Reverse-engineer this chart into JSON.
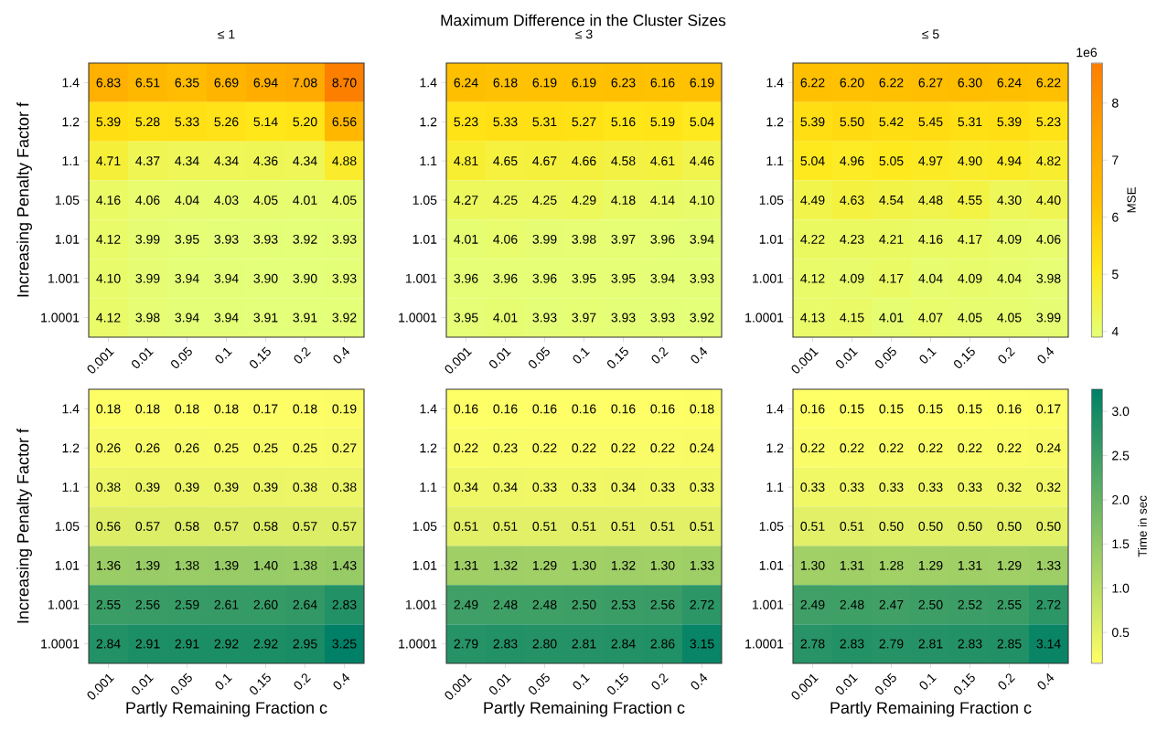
{
  "chart_data": [
    {
      "type": "heatmap",
      "title": "≤ 1",
      "ylabel": "Increasing Penalty Factor f",
      "annotations": [
        "Maximum Difference in the Cluster Sizes"
      ],
      "categories": [
        "0.001",
        "0.01",
        "0.05",
        "0.1",
        "0.15",
        "0.2",
        "0.4"
      ],
      "y_categories": [
        "1.4",
        "1.2",
        "1.1",
        "1.05",
        "1.01",
        "1.001",
        "1.0001"
      ],
      "cells": [
        [
          6.83,
          6.51,
          6.35,
          6.69,
          6.94,
          7.08,
          8.7
        ],
        [
          5.39,
          5.28,
          5.33,
          5.26,
          5.14,
          5.2,
          6.56
        ],
        [
          4.71,
          4.37,
          4.34,
          4.34,
          4.36,
          4.34,
          4.88
        ],
        [
          4.16,
          4.06,
          4.04,
          4.03,
          4.05,
          4.01,
          4.05
        ],
        [
          4.12,
          3.99,
          3.95,
          3.93,
          3.93,
          3.92,
          3.93
        ],
        [
          4.1,
          3.99,
          3.94,
          3.94,
          3.9,
          3.9,
          3.93
        ],
        [
          4.12,
          3.98,
          3.94,
          3.94,
          3.91,
          3.91,
          3.92
        ]
      ],
      "cell_labels": [
        [
          "6.83",
          "6.51",
          "6.35",
          "6.69",
          "6.94",
          "7.08",
          "8.70"
        ],
        [
          "5.39",
          "5.28",
          "5.33",
          "5.26",
          "5.14",
          "5.20",
          "6.56"
        ],
        [
          "4.71",
          "4.37",
          "4.34",
          "4.34",
          "4.36",
          "4.34",
          "4.88"
        ],
        [
          "4.16",
          "4.06",
          "4.04",
          "4.03",
          "4.05",
          "4.01",
          "4.05"
        ],
        [
          "4.12",
          "3.99",
          "3.95",
          "3.93",
          "3.93",
          "3.92",
          "3.93"
        ],
        [
          "4.10",
          "3.99",
          "3.94",
          "3.94",
          "3.90",
          "3.90",
          "3.93"
        ],
        [
          "4.12",
          "3.98",
          "3.94",
          "3.94",
          "3.91",
          "3.91",
          "3.92"
        ]
      ],
      "colors": [
        "#e4ff7a",
        "#ffe81a",
        "#ffbd00",
        "#ffa000",
        "#fc7f00"
      ]
    },
    {
      "type": "heatmap",
      "title": "≤ 3",
      "categories": [
        "0.001",
        "0.01",
        "0.05",
        "0.1",
        "0.15",
        "0.2",
        "0.4"
      ],
      "y_categories": [
        "1.4",
        "1.2",
        "1.1",
        "1.05",
        "1.01",
        "1.001",
        "1.0001"
      ],
      "cells": [
        [
          6.24,
          6.18,
          6.19,
          6.19,
          6.23,
          6.16,
          6.19
        ],
        [
          5.23,
          5.33,
          5.31,
          5.27,
          5.16,
          5.19,
          5.04
        ],
        [
          4.81,
          4.65,
          4.67,
          4.66,
          4.58,
          4.61,
          4.46
        ],
        [
          4.27,
          4.25,
          4.25,
          4.29,
          4.18,
          4.14,
          4.1
        ],
        [
          4.01,
          4.06,
          3.99,
          3.98,
          3.97,
          3.96,
          3.94
        ],
        [
          3.96,
          3.96,
          3.96,
          3.95,
          3.95,
          3.94,
          3.93
        ],
        [
          3.95,
          4.01,
          3.93,
          3.97,
          3.93,
          3.93,
          3.92
        ]
      ],
      "cell_labels": [
        [
          "6.24",
          "6.18",
          "6.19",
          "6.19",
          "6.23",
          "6.16",
          "6.19"
        ],
        [
          "5.23",
          "5.33",
          "5.31",
          "5.27",
          "5.16",
          "5.19",
          "5.04"
        ],
        [
          "4.81",
          "4.65",
          "4.67",
          "4.66",
          "4.58",
          "4.61",
          "4.46"
        ],
        [
          "4.27",
          "4.25",
          "4.25",
          "4.29",
          "4.18",
          "4.14",
          "4.10"
        ],
        [
          "4.01",
          "4.06",
          "3.99",
          "3.98",
          "3.97",
          "3.96",
          "3.94"
        ],
        [
          "3.96",
          "3.96",
          "3.96",
          "3.95",
          "3.95",
          "3.94",
          "3.93"
        ],
        [
          "3.95",
          "4.01",
          "3.93",
          "3.97",
          "3.93",
          "3.93",
          "3.92"
        ]
      ],
      "colors": [
        "#e4ff7a",
        "#ffe81a",
        "#ffbd00",
        "#ffa000",
        "#fc7f00"
      ]
    },
    {
      "type": "heatmap",
      "title": "≤ 5",
      "clabel": "MSE",
      "annotations": [
        "1e6"
      ],
      "categories": [
        "0.001",
        "0.01",
        "0.05",
        "0.1",
        "0.15",
        "0.2",
        "0.4"
      ],
      "y_categories": [
        "1.4",
        "1.2",
        "1.1",
        "1.05",
        "1.01",
        "1.001",
        "1.0001"
      ],
      "cells": [
        [
          6.22,
          6.2,
          6.22,
          6.27,
          6.3,
          6.24,
          6.22
        ],
        [
          5.39,
          5.5,
          5.42,
          5.45,
          5.31,
          5.39,
          5.23
        ],
        [
          5.04,
          4.96,
          5.05,
          4.97,
          4.9,
          4.94,
          4.82
        ],
        [
          4.49,
          4.63,
          4.54,
          4.48,
          4.55,
          4.3,
          4.4
        ],
        [
          4.22,
          4.23,
          4.21,
          4.16,
          4.17,
          4.09,
          4.06
        ],
        [
          4.12,
          4.09,
          4.17,
          4.04,
          4.09,
          4.04,
          3.98
        ],
        [
          4.13,
          4.15,
          4.01,
          4.07,
          4.05,
          4.05,
          3.99
        ]
      ],
      "cell_labels": [
        [
          "6.22",
          "6.20",
          "6.22",
          "6.27",
          "6.30",
          "6.24",
          "6.22"
        ],
        [
          "5.39",
          "5.50",
          "5.42",
          "5.45",
          "5.31",
          "5.39",
          "5.23"
        ],
        [
          "5.04",
          "4.96",
          "5.05",
          "4.97",
          "4.90",
          "4.94",
          "4.82"
        ],
        [
          "4.49",
          "4.63",
          "4.54",
          "4.48",
          "4.55",
          "4.30",
          "4.40"
        ],
        [
          "4.22",
          "4.23",
          "4.21",
          "4.16",
          "4.17",
          "4.09",
          "4.06"
        ],
        [
          "4.12",
          "4.09",
          "4.17",
          "4.04",
          "4.09",
          "4.04",
          "3.98"
        ],
        [
          "4.13",
          "4.15",
          "4.01",
          "4.07",
          "4.05",
          "4.05",
          "3.99"
        ]
      ],
      "clim": [
        3.9,
        8.7
      ],
      "cticks": [
        4,
        5,
        6,
        7,
        8
      ],
      "colors": [
        "#e4ff7a",
        "#ffe81a",
        "#ffbd00",
        "#ffa000",
        "#fc7f00"
      ]
    },
    {
      "type": "heatmap",
      "xlabel": "Partly Remaining Fraction c",
      "ylabel": "Increasing Penalty Factor f",
      "categories": [
        "0.001",
        "0.01",
        "0.05",
        "0.1",
        "0.15",
        "0.2",
        "0.4"
      ],
      "y_categories": [
        "1.4",
        "1.2",
        "1.1",
        "1.05",
        "1.01",
        "1.001",
        "1.0001"
      ],
      "cells": [
        [
          0.18,
          0.18,
          0.18,
          0.18,
          0.17,
          0.18,
          0.19
        ],
        [
          0.26,
          0.26,
          0.26,
          0.25,
          0.25,
          0.25,
          0.27
        ],
        [
          0.38,
          0.39,
          0.39,
          0.39,
          0.39,
          0.38,
          0.38
        ],
        [
          0.56,
          0.57,
          0.58,
          0.57,
          0.58,
          0.57,
          0.57
        ],
        [
          1.36,
          1.39,
          1.38,
          1.39,
          1.4,
          1.38,
          1.43
        ],
        [
          2.55,
          2.56,
          2.59,
          2.61,
          2.6,
          2.64,
          2.83
        ],
        [
          2.84,
          2.91,
          2.91,
          2.92,
          2.92,
          2.95,
          3.25
        ]
      ],
      "cell_labels": [
        [
          "0.18",
          "0.18",
          "0.18",
          "0.18",
          "0.17",
          "0.18",
          "0.19"
        ],
        [
          "0.26",
          "0.26",
          "0.26",
          "0.25",
          "0.25",
          "0.25",
          "0.27"
        ],
        [
          "0.38",
          "0.39",
          "0.39",
          "0.39",
          "0.39",
          "0.38",
          "0.38"
        ],
        [
          "0.56",
          "0.57",
          "0.58",
          "0.57",
          "0.58",
          "0.57",
          "0.57"
        ],
        [
          "1.36",
          "1.39",
          "1.38",
          "1.39",
          "1.40",
          "1.38",
          "1.43"
        ],
        [
          "2.55",
          "2.56",
          "2.59",
          "2.61",
          "2.60",
          "2.64",
          "2.83"
        ],
        [
          "2.84",
          "2.91",
          "2.91",
          "2.92",
          "2.92",
          "2.95",
          "3.25"
        ]
      ],
      "colors": [
        "#ffff66",
        "#008066"
      ]
    },
    {
      "type": "heatmap",
      "xlabel": "Partly Remaining Fraction c",
      "categories": [
        "0.001",
        "0.01",
        "0.05",
        "0.1",
        "0.15",
        "0.2",
        "0.4"
      ],
      "y_categories": [
        "1.4",
        "1.2",
        "1.1",
        "1.05",
        "1.01",
        "1.001",
        "1.0001"
      ],
      "cells": [
        [
          0.16,
          0.16,
          0.16,
          0.16,
          0.16,
          0.16,
          0.18
        ],
        [
          0.22,
          0.23,
          0.22,
          0.22,
          0.22,
          0.22,
          0.24
        ],
        [
          0.34,
          0.34,
          0.33,
          0.33,
          0.34,
          0.33,
          0.33
        ],
        [
          0.51,
          0.51,
          0.51,
          0.51,
          0.51,
          0.51,
          0.51
        ],
        [
          1.31,
          1.32,
          1.29,
          1.3,
          1.32,
          1.3,
          1.33
        ],
        [
          2.49,
          2.48,
          2.48,
          2.5,
          2.53,
          2.56,
          2.72
        ],
        [
          2.79,
          2.83,
          2.8,
          2.81,
          2.84,
          2.86,
          3.15
        ]
      ],
      "cell_labels": [
        [
          "0.16",
          "0.16",
          "0.16",
          "0.16",
          "0.16",
          "0.16",
          "0.18"
        ],
        [
          "0.22",
          "0.23",
          "0.22",
          "0.22",
          "0.22",
          "0.22",
          "0.24"
        ],
        [
          "0.34",
          "0.34",
          "0.33",
          "0.33",
          "0.34",
          "0.33",
          "0.33"
        ],
        [
          "0.51",
          "0.51",
          "0.51",
          "0.51",
          "0.51",
          "0.51",
          "0.51"
        ],
        [
          "1.31",
          "1.32",
          "1.29",
          "1.30",
          "1.32",
          "1.30",
          "1.33"
        ],
        [
          "2.49",
          "2.48",
          "2.48",
          "2.50",
          "2.53",
          "2.56",
          "2.72"
        ],
        [
          "2.79",
          "2.83",
          "2.80",
          "2.81",
          "2.84",
          "2.86",
          "3.15"
        ]
      ],
      "colors": [
        "#ffff66",
        "#008066"
      ]
    },
    {
      "type": "heatmap",
      "xlabel": "Partly Remaining Fraction c",
      "clabel": "Time in sec",
      "categories": [
        "0.001",
        "0.01",
        "0.05",
        "0.1",
        "0.15",
        "0.2",
        "0.4"
      ],
      "y_categories": [
        "1.4",
        "1.2",
        "1.1",
        "1.05",
        "1.01",
        "1.001",
        "1.0001"
      ],
      "cells": [
        [
          0.16,
          0.15,
          0.15,
          0.15,
          0.15,
          0.16,
          0.17
        ],
        [
          0.22,
          0.22,
          0.22,
          0.22,
          0.22,
          0.22,
          0.24
        ],
        [
          0.33,
          0.33,
          0.33,
          0.33,
          0.33,
          0.32,
          0.32
        ],
        [
          0.51,
          0.51,
          0.5,
          0.5,
          0.5,
          0.5,
          0.5
        ],
        [
          1.3,
          1.31,
          1.28,
          1.29,
          1.31,
          1.29,
          1.33
        ],
        [
          2.49,
          2.48,
          2.47,
          2.5,
          2.52,
          2.55,
          2.72
        ],
        [
          2.78,
          2.83,
          2.79,
          2.81,
          2.83,
          2.85,
          3.14
        ]
      ],
      "cell_labels": [
        [
          "0.16",
          "0.15",
          "0.15",
          "0.15",
          "0.15",
          "0.16",
          "0.17"
        ],
        [
          "0.22",
          "0.22",
          "0.22",
          "0.22",
          "0.22",
          "0.22",
          "0.24"
        ],
        [
          "0.33",
          "0.33",
          "0.33",
          "0.33",
          "0.33",
          "0.32",
          "0.32"
        ],
        [
          "0.51",
          "0.51",
          "0.50",
          "0.50",
          "0.50",
          "0.50",
          "0.50"
        ],
        [
          "1.30",
          "1.31",
          "1.28",
          "1.29",
          "1.31",
          "1.29",
          "1.33"
        ],
        [
          "2.49",
          "2.48",
          "2.47",
          "2.50",
          "2.52",
          "2.55",
          "2.72"
        ],
        [
          "2.78",
          "2.83",
          "2.79",
          "2.81",
          "2.83",
          "2.85",
          "3.14"
        ]
      ],
      "clim": [
        0.15,
        3.25
      ],
      "cticks": [
        0.5,
        {
          "value": 1,
          "label": "1.0"
        },
        1.5,
        {
          "value": 2,
          "label": "2.0"
        },
        2.5,
        {
          "value": 3,
          "label": "3.0"
        }
      ],
      "colors": [
        "#ffff66",
        "#008066"
      ]
    }
  ]
}
